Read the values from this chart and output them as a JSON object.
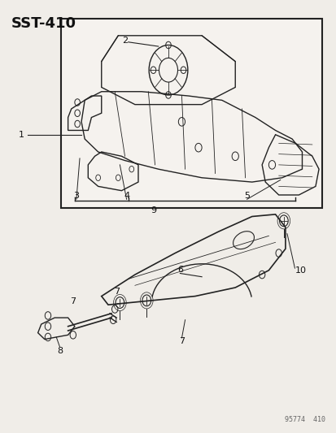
{
  "title": "SST-410",
  "background": "#f0ede8",
  "line_color": "#222222",
  "text_color": "#111111",
  "watermark": "95774  410"
}
